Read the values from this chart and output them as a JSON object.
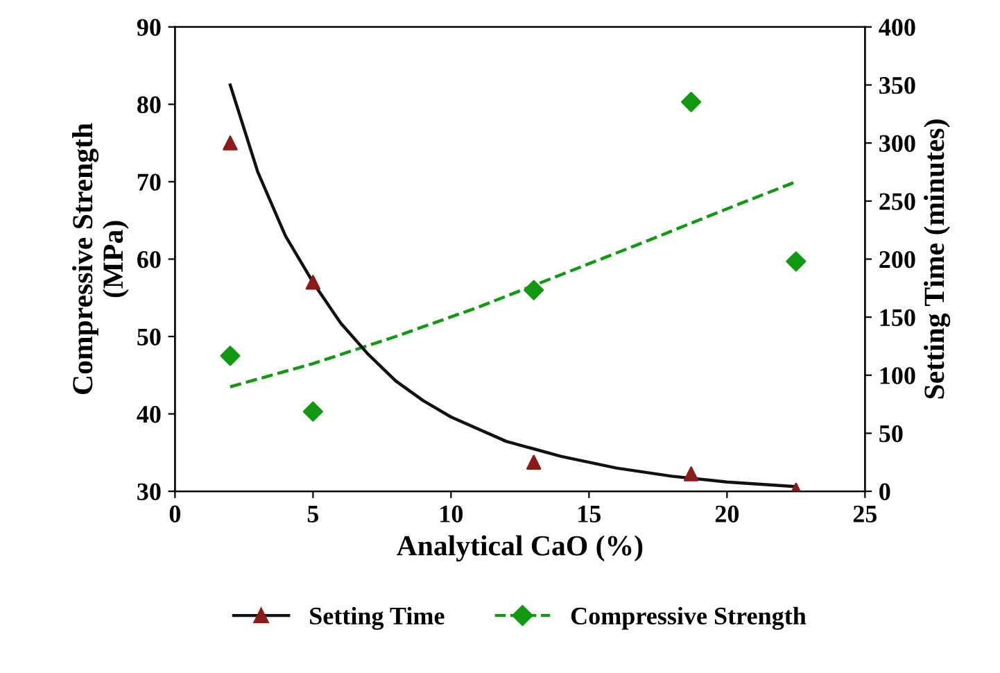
{
  "chart_data": {
    "type": "scatter",
    "xlabel": "Analytical CaO (%)",
    "ylabel": "Compressive Strength\n(MPa)",
    "y2label": "Setting Time (minutes)",
    "xlim": [
      0,
      25
    ],
    "xticks": [
      0,
      5,
      10,
      15,
      20,
      25
    ],
    "ylim": [
      30,
      90
    ],
    "yticks": [
      30,
      40,
      50,
      60,
      70,
      80,
      90
    ],
    "y2lim": [
      0,
      400
    ],
    "y2ticks": [
      0,
      50,
      100,
      150,
      200,
      250,
      300,
      350,
      400
    ],
    "grid": false,
    "legend": "bottom",
    "series": [
      {
        "name": "Setting Time",
        "axis": "y2",
        "marker": "triangle",
        "color": "#8b1a1a",
        "x": [
          2,
          5,
          13,
          18.7,
          22.5
        ],
        "values": [
          300,
          180,
          25,
          15,
          1
        ]
      },
      {
        "type": "line",
        "axis": "y2",
        "marker": "none",
        "line_style": "solid",
        "color": "#111111",
        "x": [
          2,
          3,
          4,
          5,
          6,
          7,
          8,
          9,
          10,
          12,
          14,
          16,
          18,
          20,
          22.5
        ],
        "values": [
          350,
          275,
          220,
          180,
          145,
          118,
          95,
          78,
          64,
          43,
          30,
          20,
          13,
          8,
          4
        ]
      },
      {
        "name": "Compressive Strength",
        "marker": "diamond",
        "color": "#119911",
        "x": [
          2,
          5,
          13,
          18.7,
          22.5
        ],
        "values": [
          47.5,
          40.3,
          56,
          80.3,
          59.7
        ]
      },
      {
        "type": "line",
        "marker": "none",
        "line_style": "dashed",
        "color": "#119911",
        "x": [
          2,
          5,
          8,
          11,
          14,
          17,
          20,
          22.5
        ],
        "values": [
          43.5,
          46.5,
          50,
          53.8,
          58,
          62.2,
          66.5,
          70
        ]
      }
    ]
  }
}
